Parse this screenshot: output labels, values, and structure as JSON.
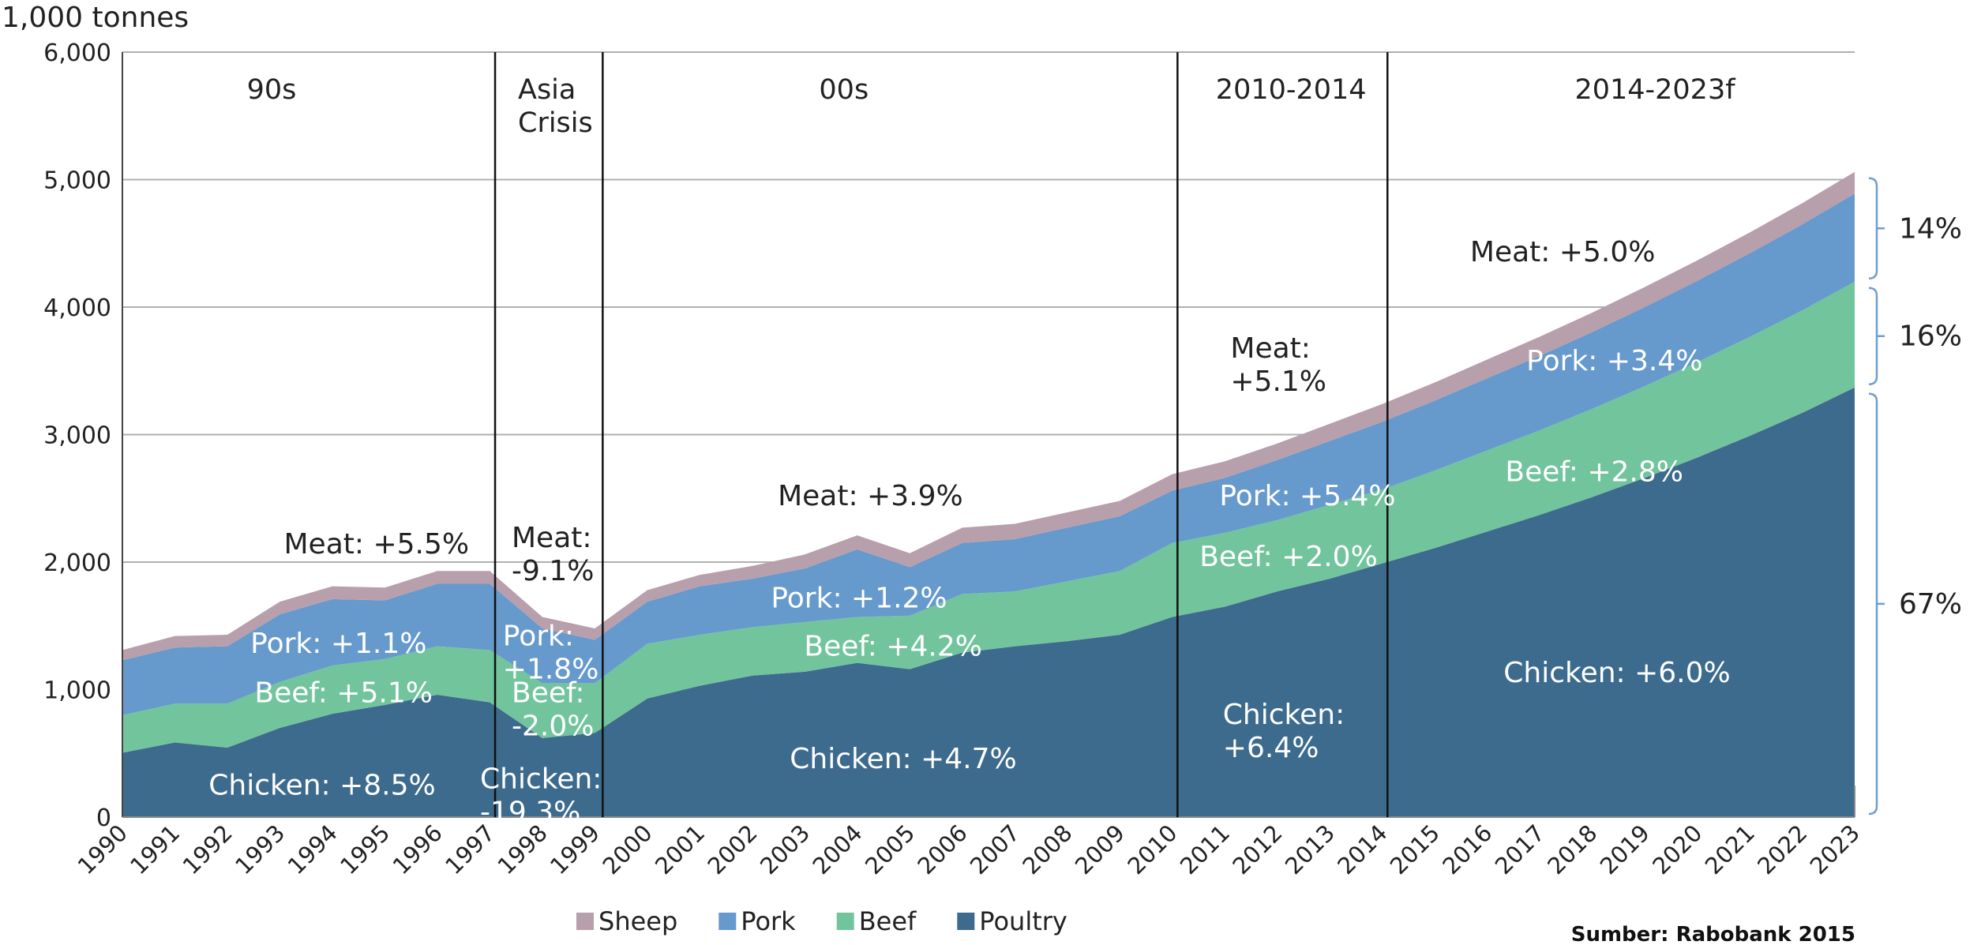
{
  "chart_data": {
    "type": "stacked-area",
    "y_axis_label": "1,000 tonnes",
    "source": "Sumber: Rabobank 2015",
    "categories": [
      "1990",
      "1991",
      "1992",
      "1993",
      "1994",
      "1995",
      "1996",
      "1997",
      "1998",
      "1999",
      "2000",
      "2001",
      "2002",
      "2003",
      "2004",
      "2005",
      "2006",
      "2007",
      "2008",
      "2009",
      "2010",
      "2011",
      "2012",
      "2013",
      "2014",
      "2015",
      "2016",
      "2017",
      "2018",
      "2019",
      "2020",
      "2021",
      "2022",
      "2023"
    ],
    "series": [
      {
        "name": "Sheep",
        "color": "#b89fac",
        "values": [
          80,
          90,
          90,
          100,
          100,
          100,
          100,
          100,
          90,
          90,
          90,
          90,
          100,
          110,
          110,
          110,
          120,
          120,
          120,
          120,
          130,
          130,
          130,
          135,
          140,
          143,
          147,
          150,
          153,
          157,
          160,
          163,
          167,
          170
        ]
      },
      {
        "name": "Pork",
        "color": "#6699cc",
        "values": [
          430,
          440,
          450,
          530,
          520,
          460,
          490,
          520,
          430,
          340,
          330,
          380,
          380,
          420,
          530,
          380,
          400,
          410,
          420,
          430,
          410,
          430,
          470,
          500,
          530,
          548,
          566,
          584,
          602,
          620,
          638,
          656,
          674,
          690
        ]
      },
      {
        "name": "Beef",
        "color": "#72c49d",
        "values": [
          295,
          305,
          345,
          360,
          380,
          360,
          380,
          410,
          430,
          390,
          430,
          400,
          380,
          390,
          360,
          420,
          460,
          430,
          470,
          500,
          580,
          580,
          560,
          580,
          580,
          608,
          636,
          664,
          692,
          720,
          748,
          776,
          804,
          830
        ]
      },
      {
        "name": "Poultry",
        "color": "#3d6b8e",
        "values": [
          505,
          585,
          545,
          700,
          810,
          880,
          960,
          900,
          620,
          660,
          930,
          1030,
          1110,
          1140,
          1210,
          1160,
          1290,
          1340,
          1380,
          1430,
          1570,
          1650,
          1770,
          1870,
          1990,
          2110,
          2240,
          2370,
          2510,
          2660,
          2820,
          2990,
          3170,
          3370
        ]
      }
    ],
    "ylim": [
      0,
      6000
    ],
    "yticks": [
      0,
      {
        "value": 1000,
        "label": "1,000"
      },
      {
        "value": 2000,
        "label": "2,000"
      },
      {
        "value": 3000,
        "label": "3,000"
      },
      {
        "value": 4000,
        "label": "4,000"
      },
      {
        "value": 5000,
        "label": "5,000"
      },
      {
        "value": 6000,
        "label": "6,000"
      }
    ],
    "grid": true,
    "period_dividers": [
      "1997",
      "1999",
      "2010",
      "2014"
    ],
    "periods": [
      [
        "90s"
      ],
      [
        "Asia",
        "Crisis"
      ],
      [
        "00s"
      ],
      [
        "2010-2014"
      ],
      [
        "2014-2023f"
      ]
    ],
    "annotations": [
      [
        "Meat: +5.5%"
      ],
      [
        "Meat:",
        "-9.1%"
      ],
      [
        "Meat: +3.9%"
      ],
      [
        "Meat:",
        "+5.1%"
      ],
      [
        "Meat: +5.0%"
      ],
      [
        "Pork: +1.1%"
      ],
      [
        "Pork:",
        "+1.8%"
      ],
      [
        "Pork: +1.2%"
      ],
      [
        "Pork: +5.4%"
      ],
      [
        "Pork: +3.4%"
      ],
      [
        "Beef: +5.1%"
      ],
      [
        "Beef:",
        "-2.0%"
      ],
      [
        "Beef: +4.2%"
      ],
      [
        "Beef: +2.0%"
      ],
      [
        "Beef: +2.8%"
      ],
      [
        "Chicken: +8.5%"
      ],
      [
        "Chicken:",
        "-19.3%"
      ],
      [
        "Chicken: +4.7%"
      ],
      [
        "Chicken:",
        "+6.4%"
      ],
      [
        "Chicken: +6.0%"
      ]
    ],
    "shares": [
      "14%",
      "16%",
      "67%"
    ]
  }
}
